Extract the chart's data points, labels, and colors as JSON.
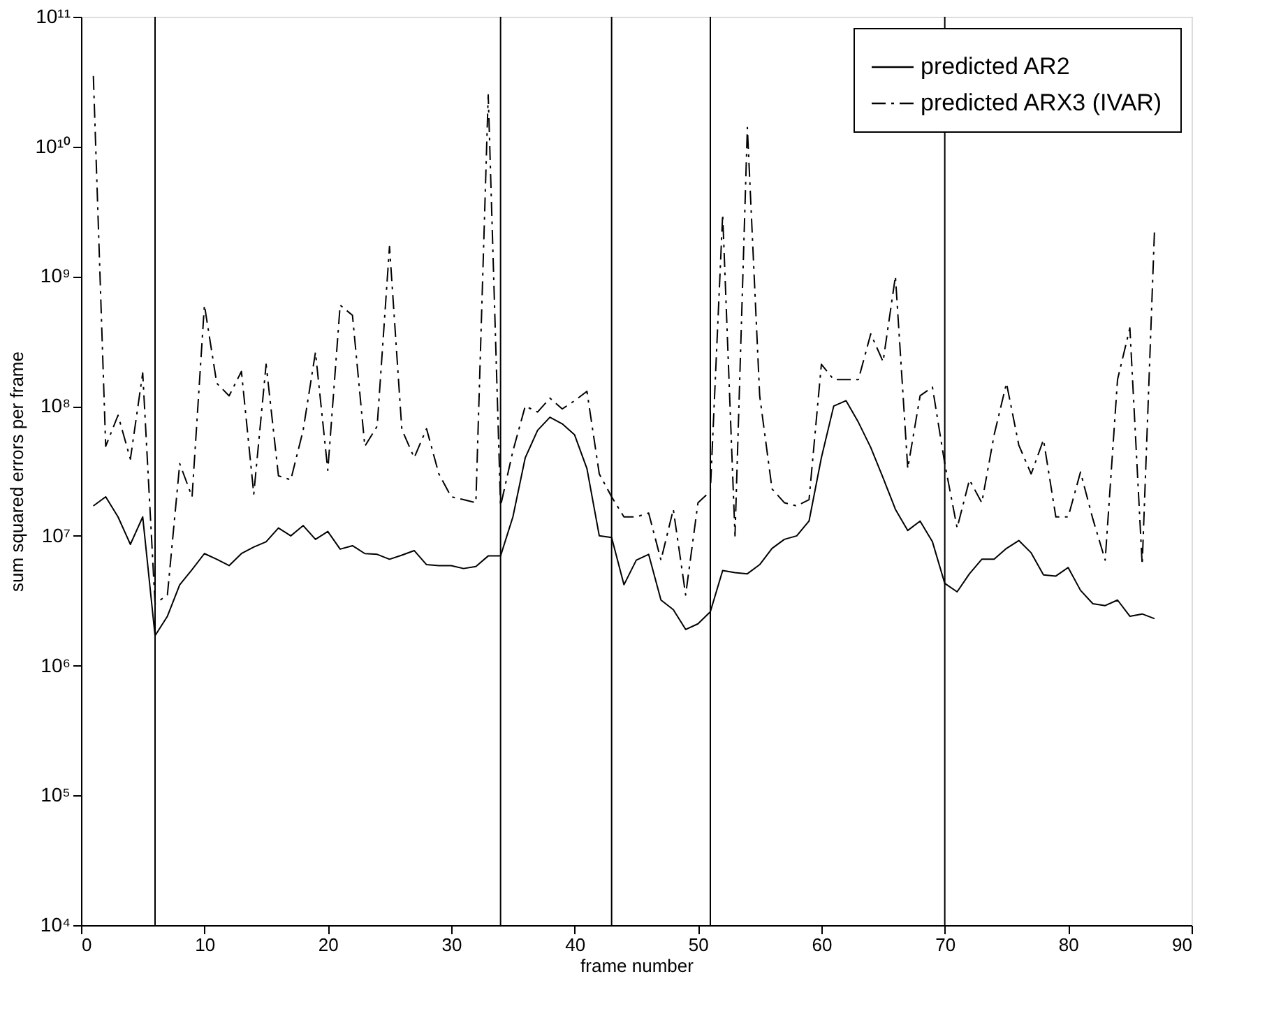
{
  "chart_data": {
    "type": "line",
    "xlabel": "frame number",
    "ylabel": "sum squared errors per frame",
    "x": [
      1,
      2,
      3,
      4,
      5,
      6,
      7,
      8,
      9,
      10,
      11,
      12,
      13,
      14,
      15,
      16,
      17,
      18,
      19,
      20,
      21,
      22,
      23,
      24,
      25,
      26,
      27,
      28,
      29,
      30,
      31,
      32,
      33,
      34,
      35,
      36,
      37,
      38,
      39,
      40,
      41,
      42,
      43,
      44,
      45,
      46,
      47,
      48,
      49,
      50,
      51,
      52,
      53,
      54,
      55,
      56,
      57,
      58,
      59,
      60,
      61,
      62,
      63,
      64,
      65,
      66,
      67,
      68,
      69,
      70,
      71,
      72,
      73,
      74,
      75,
      76,
      77,
      78,
      79,
      80,
      81,
      82,
      83,
      84,
      85,
      86,
      87
    ],
    "series": [
      {
        "name": "predicted AR2",
        "color": "#000000",
        "line_style": "solid",
        "values": [
          17000000.0,
          20000000.0,
          14000000.0,
          8600000.0,
          14000000.0,
          1700000.0,
          2400000.0,
          4200000.0,
          5500000.0,
          7300000.0,
          6600000.0,
          5900000.0,
          7300000.0,
          8200000.0,
          9000000.0,
          11500000.0,
          10000000.0,
          12000000.0,
          9400000.0,
          10800000.0,
          7900000.0,
          8400000.0,
          7300000.0,
          7200000.0,
          6600000.0,
          7100000.0,
          7700000.0,
          6000000.0,
          5900000.0,
          5900000.0,
          5600000.0,
          5800000.0,
          7000000.0,
          7000000.0,
          14000000.0,
          40000000.0,
          65000000.0,
          82000000.0,
          73000000.0,
          60000000.0,
          33000000.0,
          10000000.0,
          9700000.0,
          4200000.0,
          6500000.0,
          7200000.0,
          3200000.0,
          2700000.0,
          1900000.0,
          2100000.0,
          2600000.0,
          5400000.0,
          5200000.0,
          5100000.0,
          6000000.0,
          8000000.0,
          9400000.0,
          10000000.0,
          13000000.0,
          40000000.0,
          100000000.0,
          110000000.0,
          75000000.0,
          48000000.0,
          28000000.0,
          16000000.0,
          11000000.0,
          13000000.0,
          9000000.0,
          4300000.0,
          3700000.0,
          5100000.0,
          6600000.0,
          6600000.0,
          8000000.0,
          9200000.0,
          7400000.0,
          5000000.0,
          4900000.0,
          5700000.0,
          3800000.0,
          3000000.0,
          2900000.0,
          3200000.0,
          2400000.0,
          2500000.0,
          2300000.0
        ]
      },
      {
        "name": "predicted ARX3 (IVAR)",
        "color": "#000000",
        "line_style": "dashed",
        "values": [
          35000000000.0,
          49000000.0,
          85000000.0,
          39000000.0,
          180000000.0,
          3000000.0,
          3500000.0,
          36000000.0,
          20000000.0,
          600000000.0,
          150000000.0,
          120000000.0,
          185000000.0,
          21000000.0,
          210000000.0,
          29000000.0,
          27000000.0,
          65000000.0,
          260000000.0,
          32000000.0,
          600000000.0,
          500000000.0,
          49000000.0,
          70000000.0,
          1700000000.0,
          66000000.0,
          40000000.0,
          67000000.0,
          30000000.0,
          20000000.0,
          19000000.0,
          18000000.0,
          25000000000.0,
          17000000.0,
          45000000.0,
          100000000.0,
          90000000.0,
          115000000.0,
          95000000.0,
          110000000.0,
          130000000.0,
          30000000.0,
          20000000.0,
          14000000.0,
          14000000.0,
          15000000.0,
          6500000.0,
          16000000.0,
          3500000.0,
          18000000.0,
          22000000.0,
          3000000000.0,
          10000000.0,
          14000000000.0,
          120000000.0,
          23000000.0,
          18000000.0,
          17000000.0,
          19000000.0,
          210000000.0,
          160000000.0,
          160000000.0,
          160000000.0,
          360000000.0,
          220000000.0,
          1000000000.0,
          33000000.0,
          120000000.0,
          140000000.0,
          36000000.0,
          11500000.0,
          27000000.0,
          18000000.0,
          60000000.0,
          150000000.0,
          50000000.0,
          30000000.0,
          55000000.0,
          14000000.0,
          14000000.0,
          31000000.0,
          13500000.0,
          6500000.0,
          160000000.0,
          400000000.0,
          6000000.0,
          2300000000.0
        ]
      }
    ],
    "xlim": [
      0,
      90
    ],
    "xticks": [
      0,
      10,
      20,
      30,
      40,
      50,
      60,
      70,
      80,
      90
    ],
    "log": true,
    "ylim": [
      10000,
      100000000000
    ],
    "yticks": [
      {
        "value": 10000,
        "label": "10⁴"
      },
      {
        "value": 100000,
        "label": "10⁵"
      },
      {
        "value": 1000000,
        "label": "10⁶"
      },
      {
        "value": 10000000,
        "label": "10⁷"
      },
      {
        "value": 100000000,
        "label": "10⁸"
      },
      {
        "value": 1000000000,
        "label": "10⁹"
      },
      {
        "value": 10000000000,
        "label": "10¹⁰"
      },
      {
        "value": 100000000000,
        "label": "10¹¹"
      }
    ],
    "ref_lines": [
      {
        "axis": "x",
        "value": 6
      },
      {
        "axis": "x",
        "value": 34
      },
      {
        "axis": "x",
        "value": 43
      },
      {
        "axis": "x",
        "value": 51
      },
      {
        "axis": "x",
        "value": 70
      }
    ],
    "legend": "top right",
    "grid": false
  }
}
